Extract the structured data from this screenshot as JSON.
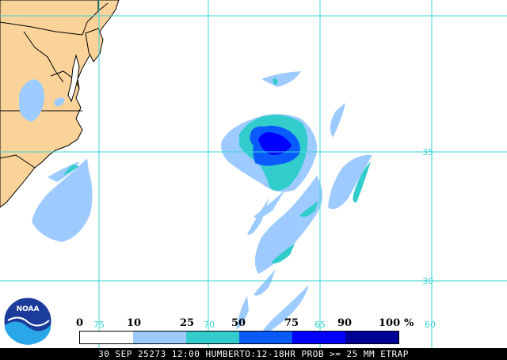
{
  "colors": {
    "land": "#fad39a",
    "ocean": "#ffffff",
    "grid": "#3ad6d6",
    "border": "#000000",
    "prob_10_25": "#9ecbff",
    "prob_25_50": "#33cccc",
    "prob_50_75": "#0a5bff",
    "prob_75_90": "#0000ff",
    "prob_90_100": "#000096"
  },
  "grid_labels": {
    "lat_35": "35",
    "lat_30": "30",
    "lon_75": "75",
    "lon_70": "70",
    "lon_65": "65",
    "lon_60": "60"
  },
  "legend": {
    "values": [
      "0",
      "10",
      "25",
      "50",
      "75",
      "90",
      "100"
    ],
    "unit": "%",
    "colors": [
      "#ffffff",
      "#9ecbff",
      "#33cccc",
      "#0a5bff",
      "#0000ff",
      "#000096"
    ]
  },
  "logo": {
    "text": "NOAA"
  },
  "footer": {
    "text": "30 SEP 25273 12:00 HUMBERTO:12-18HR PROB >= 25 MM ETRAP"
  }
}
